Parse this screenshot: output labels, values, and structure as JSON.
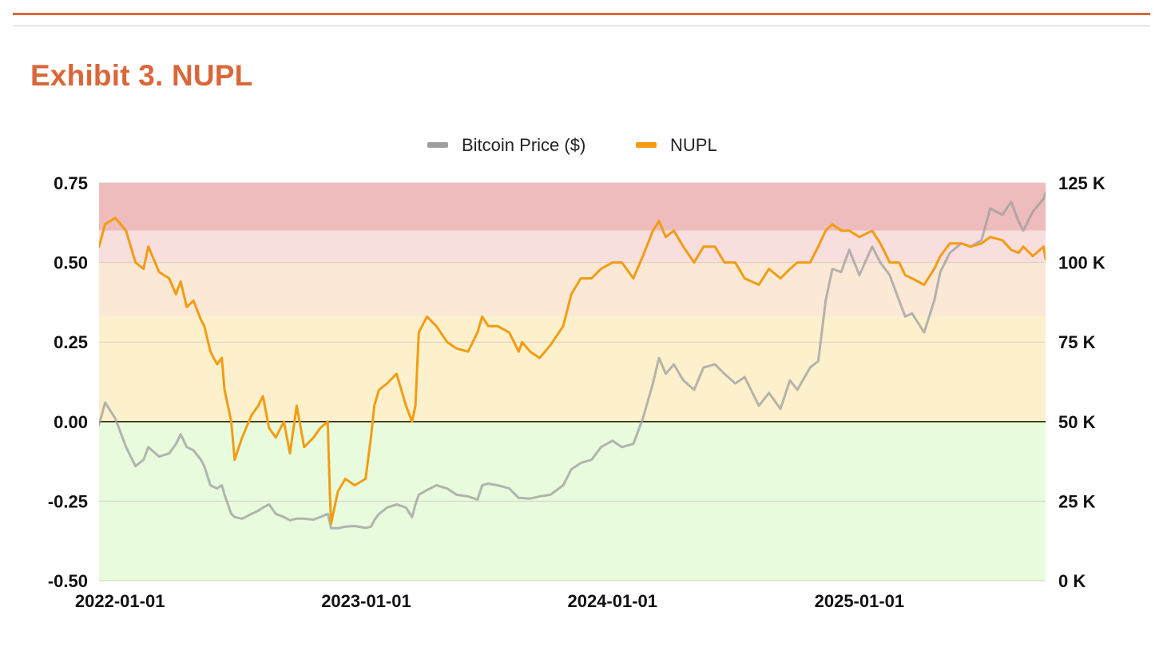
{
  "header": {
    "title": "Exhibit 3. NUPL"
  },
  "chart_data": {
    "type": "line",
    "title": "Exhibit 3. NUPL",
    "legend": {
      "placement": "top-center",
      "entries": [
        {
          "name": "Bitcoin Price ($)",
          "color": "#9e9e9e"
        },
        {
          "name": "NUPL",
          "color": "#f39c12"
        }
      ]
    },
    "left_axis": {
      "label": "",
      "range": [
        -0.5,
        0.75
      ],
      "ticks": [
        "0.75",
        "0.50",
        "0.25",
        "0.00",
        "-0.25",
        "-0.50"
      ],
      "tick_values": [
        0.75,
        0.5,
        0.25,
        0.0,
        -0.25,
        -0.5
      ]
    },
    "right_axis": {
      "label": "",
      "range": [
        0,
        125000
      ],
      "ticks": [
        "125 K",
        "100 K",
        "75 K",
        "50 K",
        "25 K",
        "0 K"
      ],
      "tick_values": [
        125000,
        100000,
        75000,
        50000,
        25000,
        0
      ]
    },
    "x_axis": {
      "range": [
        "2021-12-01",
        "2025-10-04"
      ],
      "ticks": [
        "2022-01-01",
        "2023-01-01",
        "2024-01-01",
        "2025-01-01"
      ]
    },
    "zones": [
      {
        "from": 0.6,
        "to": 0.75,
        "color": "#eebcbc"
      },
      {
        "from": 0.5,
        "to": 0.6,
        "color": "#f8dedd"
      },
      {
        "from": 0.33,
        "to": 0.5,
        "color": "#fbe9d6"
      },
      {
        "from": 0.0,
        "to": 0.33,
        "color": "#fdf1cd"
      },
      {
        "from": -0.5,
        "to": 0.0,
        "color": "#e8fbdd"
      }
    ],
    "series": [
      {
        "name": "NUPL",
        "axis": "left",
        "color": "#f39c12",
        "x": [
          "2021-12-01",
          "2021-12-10",
          "2021-12-25",
          "2022-01-10",
          "2022-01-24",
          "2022-02-05",
          "2022-02-12",
          "2022-02-28",
          "2022-03-15",
          "2022-03-25",
          "2022-04-01",
          "2022-04-10",
          "2022-04-20",
          "2022-05-01",
          "2022-05-06",
          "2022-05-15",
          "2022-05-25",
          "2022-06-01",
          "2022-06-05",
          "2022-06-15",
          "2022-06-20",
          "2022-07-01",
          "2022-07-15",
          "2022-07-25",
          "2022-08-01",
          "2022-08-10",
          "2022-08-20",
          "2022-09-01",
          "2022-09-10",
          "2022-09-20",
          "2022-10-01",
          "2022-10-15",
          "2022-10-25",
          "2022-11-05",
          "2022-11-08",
          "2022-11-10",
          "2022-11-20",
          "2022-12-01",
          "2022-12-15",
          "2022-12-31",
          "2023-01-08",
          "2023-01-13",
          "2023-01-20",
          "2023-02-01",
          "2023-02-15",
          "2023-03-01",
          "2023-03-10",
          "2023-03-15",
          "2023-03-20",
          "2023-04-01",
          "2023-04-15",
          "2023-05-01",
          "2023-05-15",
          "2023-06-01",
          "2023-06-15",
          "2023-06-22",
          "2023-07-01",
          "2023-07-15",
          "2023-08-01",
          "2023-08-15",
          "2023-08-20",
          "2023-09-01",
          "2023-09-15",
          "2023-10-01",
          "2023-10-20",
          "2023-11-01",
          "2023-11-15",
          "2023-12-01",
          "2023-12-15",
          "2024-01-01",
          "2024-01-15",
          "2024-02-01",
          "2024-02-15",
          "2024-03-01",
          "2024-03-10",
          "2024-03-20",
          "2024-04-01",
          "2024-04-15",
          "2024-05-01",
          "2024-05-15",
          "2024-06-01",
          "2024-06-15",
          "2024-07-01",
          "2024-07-15",
          "2024-08-05",
          "2024-08-20",
          "2024-09-06",
          "2024-09-20",
          "2024-10-01",
          "2024-10-20",
          "2024-11-01",
          "2024-11-12",
          "2024-11-22",
          "2024-12-05",
          "2024-12-17",
          "2025-01-01",
          "2025-01-20",
          "2025-02-01",
          "2025-02-15",
          "2025-03-01",
          "2025-03-10",
          "2025-03-20",
          "2025-04-07",
          "2025-04-22",
          "2025-05-01",
          "2025-05-15",
          "2025-06-01",
          "2025-06-15",
          "2025-07-01",
          "2025-07-14",
          "2025-08-01",
          "2025-08-14",
          "2025-08-25",
          "2025-09-01",
          "2025-09-15",
          "2025-10-01",
          "2025-10-04"
        ],
        "values": [
          0.55,
          0.62,
          0.64,
          0.6,
          0.5,
          0.48,
          0.55,
          0.47,
          0.45,
          0.4,
          0.44,
          0.36,
          0.38,
          0.32,
          0.3,
          0.22,
          0.18,
          0.2,
          0.1,
          0.0,
          -0.12,
          -0.05,
          0.02,
          0.05,
          0.08,
          -0.02,
          -0.05,
          0.0,
          -0.1,
          0.05,
          -0.08,
          -0.05,
          -0.02,
          0.0,
          -0.22,
          -0.32,
          -0.22,
          -0.18,
          -0.2,
          -0.18,
          -0.05,
          0.05,
          0.1,
          0.12,
          0.15,
          0.05,
          0.0,
          0.05,
          0.28,
          0.33,
          0.3,
          0.25,
          0.23,
          0.22,
          0.28,
          0.33,
          0.3,
          0.3,
          0.28,
          0.22,
          0.25,
          0.22,
          0.2,
          0.24,
          0.3,
          0.4,
          0.45,
          0.45,
          0.48,
          0.5,
          0.5,
          0.45,
          0.52,
          0.6,
          0.63,
          0.58,
          0.6,
          0.55,
          0.5,
          0.55,
          0.55,
          0.5,
          0.5,
          0.45,
          0.43,
          0.48,
          0.45,
          0.48,
          0.5,
          0.5,
          0.55,
          0.6,
          0.62,
          0.6,
          0.6,
          0.58,
          0.6,
          0.56,
          0.5,
          0.5,
          0.46,
          0.45,
          0.43,
          0.48,
          0.52,
          0.56,
          0.56,
          0.55,
          0.56,
          0.58,
          0.57,
          0.54,
          0.53,
          0.55,
          0.52,
          0.55,
          0.51
        ]
      },
      {
        "name": "Bitcoin Price ($)",
        "axis": "right",
        "color": "#9e9e9e",
        "x": [
          "2021-12-01",
          "2021-12-10",
          "2021-12-25",
          "2022-01-10",
          "2022-01-24",
          "2022-02-05",
          "2022-02-12",
          "2022-02-28",
          "2022-03-15",
          "2022-03-25",
          "2022-04-01",
          "2022-04-10",
          "2022-04-20",
          "2022-05-01",
          "2022-05-06",
          "2022-05-15",
          "2022-05-25",
          "2022-06-01",
          "2022-06-05",
          "2022-06-15",
          "2022-06-20",
          "2022-07-01",
          "2022-07-15",
          "2022-07-25",
          "2022-08-01",
          "2022-08-10",
          "2022-08-20",
          "2022-09-01",
          "2022-09-10",
          "2022-09-20",
          "2022-10-01",
          "2022-10-15",
          "2022-10-25",
          "2022-11-05",
          "2022-11-08",
          "2022-11-10",
          "2022-11-20",
          "2022-12-01",
          "2022-12-15",
          "2022-12-31",
          "2023-01-08",
          "2023-01-13",
          "2023-01-20",
          "2023-02-01",
          "2023-02-15",
          "2023-03-01",
          "2023-03-10",
          "2023-03-15",
          "2023-03-20",
          "2023-04-01",
          "2023-04-15",
          "2023-05-01",
          "2023-05-15",
          "2023-06-01",
          "2023-06-15",
          "2023-06-22",
          "2023-07-01",
          "2023-07-15",
          "2023-08-01",
          "2023-08-15",
          "2023-08-20",
          "2023-09-01",
          "2023-09-15",
          "2023-10-01",
          "2023-10-20",
          "2023-11-01",
          "2023-11-15",
          "2023-12-01",
          "2023-12-15",
          "2024-01-01",
          "2024-01-15",
          "2024-02-01",
          "2024-02-15",
          "2024-03-01",
          "2024-03-10",
          "2024-03-20",
          "2024-04-01",
          "2024-04-15",
          "2024-05-01",
          "2024-05-15",
          "2024-06-01",
          "2024-06-15",
          "2024-07-01",
          "2024-07-15",
          "2024-08-05",
          "2024-08-20",
          "2024-09-06",
          "2024-09-20",
          "2024-10-01",
          "2024-10-20",
          "2024-11-01",
          "2024-11-12",
          "2024-11-22",
          "2024-12-05",
          "2024-12-17",
          "2025-01-01",
          "2025-01-20",
          "2025-02-01",
          "2025-02-15",
          "2025-03-01",
          "2025-03-10",
          "2025-03-20",
          "2025-04-07",
          "2025-04-22",
          "2025-05-01",
          "2025-05-15",
          "2025-06-01",
          "2025-06-15",
          "2025-07-01",
          "2025-07-14",
          "2025-08-01",
          "2025-08-14",
          "2025-08-25",
          "2025-09-01",
          "2025-09-15",
          "2025-10-01",
          "2025-10-04"
        ],
        "values": [
          49000,
          56000,
          51000,
          42000,
          36000,
          38000,
          42000,
          39000,
          40000,
          43000,
          46000,
          42000,
          41000,
          38000,
          36000,
          30000,
          29000,
          30000,
          27000,
          21000,
          20000,
          19500,
          21000,
          22000,
          23000,
          24000,
          21000,
          20000,
          19000,
          19500,
          19500,
          19200,
          20000,
          21000,
          18500,
          16500,
          16500,
          17000,
          17200,
          16600,
          17000,
          19000,
          21000,
          23000,
          24000,
          23000,
          20000,
          24000,
          27000,
          28500,
          30000,
          29000,
          27000,
          26500,
          25500,
          30000,
          30500,
          30000,
          29000,
          26000,
          26000,
          25800,
          26500,
          27000,
          30000,
          35000,
          37000,
          38000,
          42000,
          44000,
          42000,
          43000,
          51000,
          62000,
          70000,
          65000,
          68000,
          63000,
          60000,
          67000,
          68000,
          65000,
          62000,
          64000,
          55000,
          59000,
          54000,
          63000,
          60000,
          67000,
          69000,
          88000,
          98000,
          97000,
          104000,
          96000,
          105000,
          100000,
          96000,
          88000,
          83000,
          84000,
          78000,
          88000,
          97000,
          103000,
          106000,
          105000,
          107000,
          117000,
          115000,
          119000,
          113000,
          110000,
          116000,
          120000,
          122000
        ]
      }
    ]
  }
}
